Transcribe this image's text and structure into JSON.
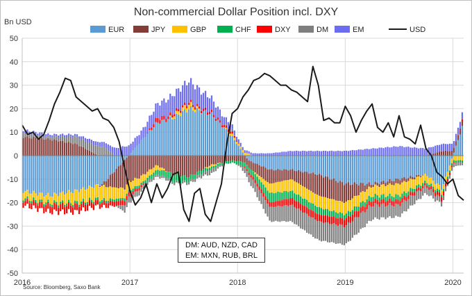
{
  "chart_data": {
    "type": "bar",
    "title": "Non-commercial Dollar Position incl. DXY",
    "ylabel": "Bn USD",
    "ylim": [
      -50,
      50
    ],
    "yticks": [
      50,
      40,
      30,
      20,
      10,
      0,
      -10,
      -20,
      -30,
      -40,
      -50
    ],
    "xticks": [
      "2016",
      "2017",
      "2018",
      "2019",
      "2020"
    ],
    "xrange": [
      2016.0,
      2020.1
    ],
    "legend": [
      {
        "name": "EUR",
        "color": "#5b9bd5",
        "kind": "bar"
      },
      {
        "name": "JPY",
        "color": "#843c39",
        "kind": "bar"
      },
      {
        "name": "GBP",
        "color": "#ffc000",
        "kind": "bar"
      },
      {
        "name": "CHF",
        "color": "#00b050",
        "kind": "bar"
      },
      {
        "name": "DXY",
        "color": "#ff0000",
        "kind": "bar"
      },
      {
        "name": "DM",
        "color": "#7f7f7f",
        "kind": "bar"
      },
      {
        "name": "EM",
        "color": "#6c6cf0",
        "kind": "bar"
      },
      {
        "name": "USD",
        "color": "#1a1a1a",
        "kind": "line"
      }
    ],
    "series": [
      {
        "name": "EUR",
        "x": [
          2016.0,
          2016.25,
          2016.5,
          2016.75,
          2016.95,
          2017.1,
          2017.25,
          2017.4,
          2017.55,
          2017.75,
          2017.95,
          2018.1,
          2018.3,
          2018.5,
          2018.75,
          2019.0,
          2019.25,
          2019.5,
          2019.75,
          2019.9,
          2020.1
        ],
        "values": [
          -15,
          -17,
          -15,
          -12,
          -2,
          6,
          14,
          16,
          20,
          18,
          8,
          -2,
          -6,
          -6,
          -8,
          -12,
          -12,
          -10,
          -8,
          -14,
          14
        ]
      },
      {
        "name": "JPY",
        "x": [
          2016.0,
          2016.25,
          2016.5,
          2016.75,
          2016.95,
          2017.1,
          2017.25,
          2017.4,
          2017.55,
          2017.75,
          2017.95,
          2018.1,
          2018.3,
          2018.5,
          2018.75,
          2019.0,
          2019.25,
          2019.5,
          2019.75,
          2019.9,
          2020.1
        ],
        "values": [
          8,
          7,
          5,
          -1,
          -12,
          -9,
          -4,
          -8,
          -9,
          -4,
          -2,
          -3,
          -6,
          -4,
          -9,
          -8,
          -1,
          -2,
          0,
          2,
          2
        ]
      },
      {
        "name": "GBP",
        "x": [
          2016.0,
          2016.25,
          2016.5,
          2016.75,
          2016.95,
          2017.1,
          2017.25,
          2017.4,
          2017.55,
          2017.75,
          2017.95,
          2018.1,
          2018.3,
          2018.5,
          2018.75,
          2019.0,
          2019.25,
          2019.5,
          2019.75,
          2019.9,
          2020.1
        ],
        "values": [
          -3,
          -3,
          -5,
          -6,
          -4,
          -3,
          -2,
          1,
          2,
          -1,
          1,
          1,
          -4,
          -5,
          -5,
          -5,
          -4,
          -5,
          -3,
          -2,
          -2
        ]
      },
      {
        "name": "CHF",
        "x": [
          2016.0,
          2016.25,
          2016.5,
          2016.75,
          2016.95,
          2017.1,
          2017.25,
          2017.4,
          2017.55,
          2017.75,
          2017.95,
          2018.1,
          2018.3,
          2018.5,
          2018.75,
          2019.0,
          2019.25,
          2019.5,
          2019.75,
          2019.9,
          2020.1
        ],
        "values": [
          -1,
          -1,
          -1,
          -1,
          -1,
          -1,
          -2,
          -3,
          -2,
          -1,
          -1,
          -2,
          -4,
          -3,
          -3,
          -2,
          -2,
          -2,
          -1,
          -1,
          -1
        ]
      },
      {
        "name": "DXY",
        "x": [
          2016.0,
          2016.25,
          2016.5,
          2016.75,
          2016.95,
          2017.1,
          2017.25,
          2017.4,
          2017.55,
          2017.75,
          2017.95,
          2018.1,
          2018.3,
          2018.5,
          2018.75,
          2019.0,
          2019.25,
          2019.5,
          2019.75,
          2019.9,
          2020.1
        ],
        "values": [
          -2,
          -3,
          -3,
          -2,
          -2,
          -1,
          2,
          1,
          1,
          1,
          1,
          -1,
          -2,
          -3,
          -3,
          -3,
          -2,
          -2,
          -1,
          -2,
          1
        ]
      },
      {
        "name": "DM",
        "x": [
          2016.0,
          2016.25,
          2016.5,
          2016.75,
          2016.95,
          2017.1,
          2017.25,
          2017.4,
          2017.55,
          2017.75,
          2017.95,
          2018.1,
          2018.3,
          2018.5,
          2018.75,
          2019.0,
          2019.25,
          2019.5,
          2019.75,
          2019.9,
          2020.1
        ],
        "values": [
          2,
          1,
          3,
          4,
          -3,
          -2,
          -1,
          -1,
          -1,
          -2,
          1,
          -3,
          -6,
          -7,
          -8,
          -8,
          -6,
          -5,
          -3,
          -2,
          -1
        ]
      },
      {
        "name": "EM",
        "x": [
          2016.0,
          2016.25,
          2016.5,
          2016.75,
          2016.95,
          2017.1,
          2017.25,
          2017.4,
          2017.55,
          2017.75,
          2017.95,
          2018.1,
          2018.3,
          2018.5,
          2018.75,
          2019.0,
          2019.25,
          2019.5,
          2019.75,
          2019.9,
          2020.1
        ],
        "values": [
          1,
          1,
          1,
          2,
          4,
          4,
          6,
          8,
          9,
          6,
          2,
          1,
          1,
          2,
          2,
          2,
          3,
          4,
          3,
          3,
          3
        ]
      }
    ],
    "usd_line": {
      "name": "USD",
      "x": [
        2016.0,
        2016.05,
        2016.1,
        2016.15,
        2016.2,
        2016.25,
        2016.3,
        2016.35,
        2016.4,
        2016.45,
        2016.5,
        2016.55,
        2016.6,
        2016.65,
        2016.7,
        2016.75,
        2016.8,
        2016.85,
        2016.9,
        2016.95,
        2017.0,
        2017.05,
        2017.1,
        2017.15,
        2017.2,
        2017.25,
        2017.3,
        2017.35,
        2017.4,
        2017.45,
        2017.5,
        2017.55,
        2017.6,
        2017.65,
        2017.7,
        2017.75,
        2017.8,
        2017.85,
        2017.9,
        2017.95,
        2018.0,
        2018.05,
        2018.1,
        2018.15,
        2018.2,
        2018.25,
        2018.3,
        2018.35,
        2018.4,
        2018.45,
        2018.5,
        2018.55,
        2018.6,
        2018.65,
        2018.7,
        2018.75,
        2018.8,
        2018.85,
        2018.9,
        2018.95,
        2019.0,
        2019.05,
        2019.1,
        2019.15,
        2019.2,
        2019.25,
        2019.3,
        2019.35,
        2019.4,
        2019.45,
        2019.5,
        2019.55,
        2019.6,
        2019.65,
        2019.7,
        2019.75,
        2019.8,
        2019.85,
        2019.9,
        2019.95,
        2020.0,
        2020.05,
        2020.1
      ],
      "values": [
        13,
        9,
        10,
        7,
        9,
        15,
        22,
        27,
        33,
        32,
        25,
        23,
        21,
        19,
        20,
        16,
        15,
        12,
        6,
        -5,
        -15,
        -21,
        -18,
        -12,
        -20,
        -12,
        -18,
        -14,
        -8,
        -7,
        -23,
        -28,
        -16,
        -14,
        -25,
        -28,
        -20,
        -12,
        5,
        18,
        20,
        25,
        28,
        32,
        33,
        35,
        34,
        32,
        30,
        30,
        28,
        27,
        25,
        23,
        38,
        30,
        15,
        16,
        14,
        14,
        21,
        17,
        10,
        15,
        19,
        22,
        12,
        10,
        14,
        8,
        17,
        8,
        7,
        5,
        13,
        3,
        0,
        -7,
        -9,
        -12,
        -10,
        -17,
        -19
      ]
    },
    "annotation": {
      "line1": "DM: AUD, NZD, CAD",
      "line2": "EM: MXN, RUB, BRL"
    },
    "source": "Source: Bloomberg, Saxo Bank"
  }
}
